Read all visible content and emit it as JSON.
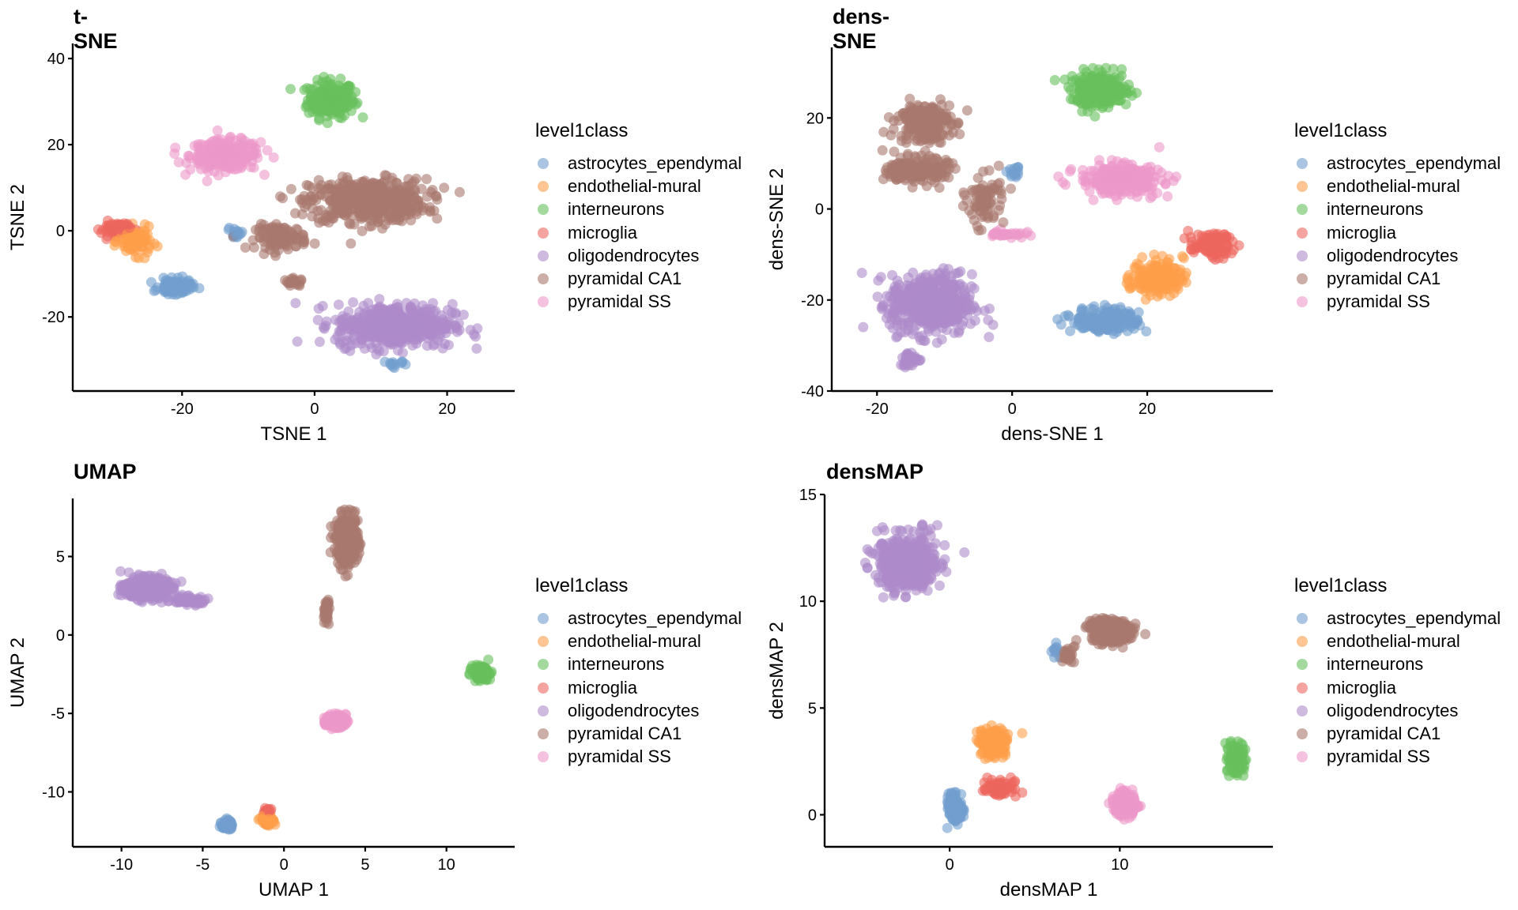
{
  "legend": {
    "title": "level1class",
    "classes": [
      {
        "name": "astrocytes_ependymal",
        "color": "#729ECE"
      },
      {
        "name": "endothelial-mural",
        "color": "#FF9E4A"
      },
      {
        "name": "interneurons",
        "color": "#67BF5C"
      },
      {
        "name": "microglia",
        "color": "#ED665D"
      },
      {
        "name": "oligodendrocytes",
        "color": "#AD8BC9"
      },
      {
        "name": "pyramidal CA1",
        "color": "#A8786E"
      },
      {
        "name": "pyramidal SS",
        "color": "#ED97CA"
      }
    ]
  },
  "chart_data": [
    {
      "type": "scatter",
      "title": "t-SNE",
      "xlabel": "TSNE 1",
      "ylabel": "TSNE 2",
      "xlim": [
        -36.5,
        30.2
      ],
      "ylim": [
        -37.2,
        43.5
      ],
      "xticks": [
        -20,
        0,
        20
      ],
      "yticks": [
        -20,
        0,
        20,
        40
      ],
      "grid": false,
      "legend_position": "right",
      "clusters": [
        {
          "class": "interneurons",
          "center": [
            2.5,
            30.5
          ],
          "spread": [
            3.2,
            3.8
          ],
          "n": 220
        },
        {
          "class": "pyramidal SS",
          "center": [
            -13.5,
            17.5
          ],
          "spread": [
            4.8,
            3.2
          ],
          "n": 260
        },
        {
          "class": "pyramidal CA1",
          "center": [
            8,
            7
          ],
          "spread": [
            8,
            4.5
          ],
          "n": 520
        },
        {
          "class": "pyramidal CA1",
          "center": [
            -5,
            -1.5
          ],
          "spread": [
            3.5,
            2.5
          ],
          "n": 110
        },
        {
          "class": "pyramidal CA1",
          "center": [
            -3,
            -12
          ],
          "spread": [
            1.5,
            0.8
          ],
          "n": 20
        },
        {
          "class": "microglia",
          "center": [
            -30,
            0.5
          ],
          "spread": [
            2,
            1.5
          ],
          "n": 70
        },
        {
          "class": "endothelial-mural",
          "center": [
            -27,
            -2.5
          ],
          "spread": [
            2.2,
            2.8
          ],
          "n": 90
        },
        {
          "class": "astrocytes_ependymal",
          "center": [
            -21,
            -13
          ],
          "spread": [
            2.2,
            1.5
          ],
          "n": 130
        },
        {
          "class": "astrocytes_ependymal",
          "center": [
            -12,
            -0.5
          ],
          "spread": [
            1,
            1.2
          ],
          "n": 15
        },
        {
          "class": "oligodendrocytes",
          "center": [
            12,
            -22
          ],
          "spread": [
            8,
            4.5
          ],
          "n": 520
        },
        {
          "class": "astrocytes_ependymal",
          "center": [
            12,
            -31
          ],
          "spread": [
            1.2,
            1.5
          ],
          "n": 12
        }
      ]
    },
    {
      "type": "scatter",
      "title": "dens-SNE",
      "xlabel": "dens-SNE 1",
      "ylabel": "dens-SNE 2",
      "xlim": [
        -26.7,
        38.6
      ],
      "ylim": [
        -40,
        35.5
      ],
      "xticks": [
        -20,
        0,
        20
      ],
      "yticks": [
        -40,
        -20,
        0,
        20
      ],
      "grid": false,
      "legend_position": "right",
      "clusters": [
        {
          "class": "interneurons",
          "center": [
            13,
            26
          ],
          "spread": [
            4,
            3.5
          ],
          "n": 220
        },
        {
          "class": "pyramidal CA1",
          "center": [
            -13,
            19
          ],
          "spread": [
            3.5,
            4
          ],
          "n": 230
        },
        {
          "class": "pyramidal CA1",
          "center": [
            -14,
            8.5
          ],
          "spread": [
            4,
            2.5
          ],
          "n": 180
        },
        {
          "class": "pyramidal CA1",
          "center": [
            -4,
            2
          ],
          "spread": [
            2.5,
            5
          ],
          "n": 80
        },
        {
          "class": "astrocytes_ependymal",
          "center": [
            0.5,
            8
          ],
          "spread": [
            1,
            2
          ],
          "n": 15
        },
        {
          "class": "pyramidal SS",
          "center": [
            16,
            6.5
          ],
          "spread": [
            5.5,
            3
          ],
          "n": 280
        },
        {
          "class": "microglia",
          "center": [
            29.5,
            -8
          ],
          "spread": [
            3,
            2.5
          ],
          "n": 90
        },
        {
          "class": "endothelial-mural",
          "center": [
            21.5,
            -15
          ],
          "spread": [
            3.5,
            3.5
          ],
          "n": 170
        },
        {
          "class": "astrocytes_ependymal",
          "center": [
            14,
            -24.5
          ],
          "spread": [
            4.5,
            2.5
          ],
          "n": 180
        },
        {
          "class": "oligodendrocytes",
          "center": [
            -12,
            -21
          ],
          "spread": [
            5.5,
            6
          ],
          "n": 520
        },
        {
          "class": "oligodendrocytes",
          "center": [
            -15,
            -33
          ],
          "spread": [
            1.5,
            1.5
          ],
          "n": 40
        },
        {
          "class": "pyramidal SS",
          "center": [
            -1,
            -5.5
          ],
          "spread": [
            2.5,
            0.8
          ],
          "n": 30
        }
      ]
    },
    {
      "type": "scatter",
      "title": "UMAP",
      "xlabel": "UMAP 1",
      "ylabel": "UMAP 2",
      "xlim": [
        -13.0,
        14.2
      ],
      "ylim": [
        -13.5,
        8.7
      ],
      "xticks": [
        -10,
        -5,
        0,
        5,
        10
      ],
      "yticks": [
        -10,
        -5,
        0,
        5
      ],
      "grid": false,
      "legend_position": "right",
      "clusters": [
        {
          "class": "pyramidal CA1",
          "center": [
            3.9,
            6
          ],
          "spread": [
            0.6,
            1.4
          ],
          "n": 400
        },
        {
          "class": "oligodendrocytes",
          "center": [
            -8.5,
            3
          ],
          "spread": [
            1.2,
            0.6
          ],
          "n": 400
        },
        {
          "class": "oligodendrocytes",
          "center": [
            -6,
            2.2
          ],
          "spread": [
            1.2,
            0.25
          ],
          "n": 60
        },
        {
          "class": "pyramidal CA1",
          "center": [
            2.6,
            1.5
          ],
          "spread": [
            0.15,
            0.8
          ],
          "n": 40
        },
        {
          "class": "interneurons",
          "center": [
            12.1,
            -2.4
          ],
          "spread": [
            0.45,
            0.35
          ],
          "n": 200
        },
        {
          "class": "pyramidal SS",
          "center": [
            3.2,
            -5.5
          ],
          "spread": [
            0.55,
            0.35
          ],
          "n": 250
        },
        {
          "class": "astrocytes_ependymal",
          "center": [
            -3.5,
            -12.1
          ],
          "spread": [
            0.3,
            0.3
          ],
          "n": 60
        },
        {
          "class": "endothelial-mural",
          "center": [
            -1,
            -11.8
          ],
          "spread": [
            0.35,
            0.3
          ],
          "n": 90
        },
        {
          "class": "microglia",
          "center": [
            -1,
            -11.2
          ],
          "spread": [
            0.2,
            0.15
          ],
          "n": 20
        }
      ]
    },
    {
      "type": "scatter",
      "title": "densMAP",
      "xlabel": "densMAP 1",
      "ylabel": "densMAP 2",
      "xlim": [
        -7.35,
        19.0
      ],
      "ylim": [
        -1.5,
        15.0
      ],
      "xticks": [
        0,
        10
      ],
      "yticks": [
        0,
        5,
        10,
        15
      ],
      "grid": false,
      "legend_position": "right",
      "clusters": [
        {
          "class": "oligodendrocytes",
          "center": [
            -2.5,
            11.8
          ],
          "spread": [
            1.6,
            1.1
          ],
          "n": 500
        },
        {
          "class": "pyramidal CA1",
          "center": [
            9.5,
            8.6
          ],
          "spread": [
            1.1,
            0.45
          ],
          "n": 350
        },
        {
          "class": "pyramidal CA1",
          "center": [
            7,
            7.4
          ],
          "spread": [
            0.4,
            0.4
          ],
          "n": 30
        },
        {
          "class": "astrocytes_ependymal",
          "center": [
            6.2,
            7.8
          ],
          "spread": [
            0.15,
            0.35
          ],
          "n": 12
        },
        {
          "class": "endothelial-mural",
          "center": [
            2.6,
            3.4
          ],
          "spread": [
            0.8,
            0.6
          ],
          "n": 170
        },
        {
          "class": "astrocytes_ependymal",
          "center": [
            0.3,
            0.3
          ],
          "spread": [
            0.35,
            0.6
          ],
          "n": 170
        },
        {
          "class": "microglia",
          "center": [
            3,
            1.3
          ],
          "spread": [
            0.8,
            0.35
          ],
          "n": 80
        },
        {
          "class": "pyramidal SS",
          "center": [
            10.3,
            0.5
          ],
          "spread": [
            0.6,
            0.45
          ],
          "n": 220
        },
        {
          "class": "interneurons",
          "center": [
            16.8,
            2.6
          ],
          "spread": [
            0.4,
            0.55
          ],
          "n": 200
        }
      ]
    }
  ]
}
